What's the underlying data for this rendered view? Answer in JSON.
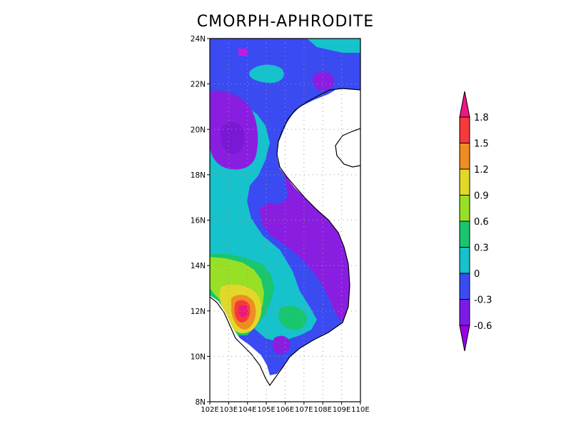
{
  "title": "CMORPH-APHRODITE",
  "axes": {
    "lat_ticks": [
      {
        "value": 8,
        "label": "8N"
      },
      {
        "value": 10,
        "label": "10N"
      },
      {
        "value": 12,
        "label": "12N"
      },
      {
        "value": 14,
        "label": "14N"
      },
      {
        "value": 16,
        "label": "16N"
      },
      {
        "value": 18,
        "label": "18N"
      },
      {
        "value": 20,
        "label": "20N"
      },
      {
        "value": 22,
        "label": "22N"
      },
      {
        "value": 24,
        "label": "24N"
      }
    ],
    "lon_ticks": [
      {
        "value": 102,
        "label": "102E"
      },
      {
        "value": 103,
        "label": "103E"
      },
      {
        "value": 104,
        "label": "104E"
      },
      {
        "value": 105,
        "label": "105E"
      },
      {
        "value": 106,
        "label": "106E"
      },
      {
        "value": 107,
        "label": "107E"
      },
      {
        "value": 108,
        "label": "108E"
      },
      {
        "value": 109,
        "label": "109E"
      },
      {
        "value": 110,
        "label": "110E"
      }
    ],
    "lon_range": [
      102,
      110
    ],
    "lat_range": [
      8,
      24
    ],
    "grid": true,
    "grid_style": "dotted"
  },
  "colorbar": {
    "placement": "right",
    "levels": [
      "-0.6",
      "-0.3",
      "0",
      "0.3",
      "0.6",
      "0.9",
      "1.2",
      "1.5",
      "1.8"
    ],
    "colors": [
      "#9a00e6",
      "#7c1be6",
      "#3a4bf2",
      "#16c2cc",
      "#18c66e",
      "#98e025",
      "#e2d82a",
      "#ef8c22",
      "#f43a3a",
      "#f0187f"
    ]
  },
  "field": {
    "palette": {
      "purple": "#8a1ee0",
      "blue": "#3a4bf2",
      "cyan": "#16c2cc",
      "green": "#18c66e",
      "yellowgreen": "#98e025",
      "yellow": "#e2d82a",
      "orange": "#ef8c22",
      "red": "#f43a3a",
      "magenta": "#f0187f"
    }
  }
}
